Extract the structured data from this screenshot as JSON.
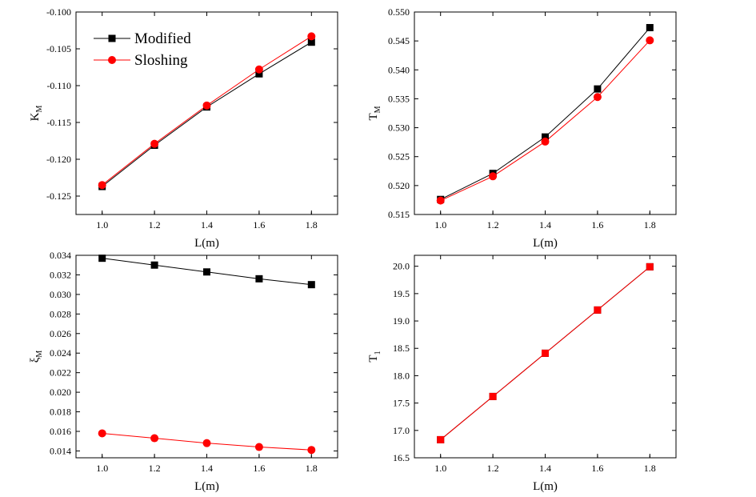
{
  "chart_data": [
    {
      "type": "line",
      "x": [
        1.0,
        1.2,
        1.4,
        1.6,
        1.8
      ],
      "xlim": [
        0.9,
        1.9
      ],
      "xticks": [
        "1.0",
        "1.2",
        "1.4",
        "1.6",
        "1.8"
      ],
      "xlabel": "L(m)",
      "ylabel_main": "K",
      "ylabel_sub": "M",
      "ylim": [
        -0.1275,
        -0.1
      ],
      "yticks": [
        "-0.125",
        "-0.120",
        "-0.115",
        "-0.110",
        "-0.105",
        "-0.100"
      ],
      "ytick_values": [
        -0.125,
        -0.12,
        -0.115,
        -0.11,
        -0.105,
        -0.1
      ],
      "legend": {
        "placement": "top-left",
        "entries": [
          "Modified",
          "Sloshing"
        ]
      },
      "series": [
        {
          "name": "Modified",
          "marker": "square",
          "color": "#000000",
          "values": [
            -0.1237,
            -0.1181,
            -0.1129,
            -0.1084,
            -0.1041
          ]
        },
        {
          "name": "Sloshing",
          "marker": "circle",
          "color": "#ff0000",
          "values": [
            -0.1235,
            -0.1179,
            -0.1127,
            -0.1078,
            -0.1033
          ]
        }
      ]
    },
    {
      "type": "line",
      "x": [
        1.0,
        1.2,
        1.4,
        1.6,
        1.8
      ],
      "xlim": [
        0.9,
        1.9
      ],
      "xticks": [
        "1.0",
        "1.2",
        "1.4",
        "1.6",
        "1.8"
      ],
      "xlabel": "L(m)",
      "ylabel_main": "T",
      "ylabel_sub": "M",
      "ylim": [
        0.515,
        0.55
      ],
      "yticks": [
        "0.515",
        "0.520",
        "0.525",
        "0.530",
        "0.535",
        "0.540",
        "0.545",
        "0.550"
      ],
      "ytick_values": [
        0.515,
        0.52,
        0.525,
        0.53,
        0.535,
        0.54,
        0.545,
        0.55
      ],
      "series": [
        {
          "name": "Modified",
          "marker": "square",
          "color": "#000000",
          "values": [
            0.5176,
            0.5221,
            0.5284,
            0.5367,
            0.5473
          ]
        },
        {
          "name": "Sloshing",
          "marker": "circle",
          "color": "#ff0000",
          "values": [
            0.5174,
            0.5216,
            0.5276,
            0.5353,
            0.5451
          ]
        }
      ]
    },
    {
      "type": "line",
      "x": [
        1.0,
        1.2,
        1.4,
        1.6,
        1.8
      ],
      "xlim": [
        0.9,
        1.9
      ],
      "xticks": [
        "1.0",
        "1.2",
        "1.4",
        "1.6",
        "1.8"
      ],
      "xlabel": "L(m)",
      "ylabel_main": "ξ",
      "ylabel_sub": "M",
      "ylim": [
        0.0133,
        0.034
      ],
      "yticks": [
        "0.014",
        "0.016",
        "0.018",
        "0.020",
        "0.022",
        "0.024",
        "0.026",
        "0.028",
        "0.030",
        "0.032",
        "0.034"
      ],
      "ytick_values": [
        0.014,
        0.016,
        0.018,
        0.02,
        0.022,
        0.024,
        0.026,
        0.028,
        0.03,
        0.032,
        0.034
      ],
      "series": [
        {
          "name": "Modified",
          "marker": "square",
          "color": "#000000",
          "values": [
            0.0337,
            0.033,
            0.0323,
            0.0316,
            0.031
          ]
        },
        {
          "name": "Sloshing",
          "marker": "circle",
          "color": "#ff0000",
          "values": [
            0.0158,
            0.0153,
            0.0148,
            0.0144,
            0.0141
          ]
        }
      ]
    },
    {
      "type": "line",
      "x": [
        1.0,
        1.2,
        1.4,
        1.6,
        1.8
      ],
      "xlim": [
        0.9,
        1.9
      ],
      "xticks": [
        "1.0",
        "1.2",
        "1.4",
        "1.6",
        "1.8"
      ],
      "xlabel": "L(m)",
      "ylabel_main": "T",
      "ylabel_sub": "1",
      "ylim": [
        16.5,
        20.2
      ],
      "yticks": [
        "16.5",
        "17.0",
        "17.5",
        "18.0",
        "18.5",
        "19.0",
        "19.5",
        "20.0"
      ],
      "ytick_values": [
        16.5,
        17.0,
        17.5,
        18.0,
        18.5,
        19.0,
        19.5,
        20.0
      ],
      "series": [
        {
          "name": "Modified",
          "marker": "square",
          "color": "#000000",
          "values": [
            16.83,
            17.62,
            18.41,
            19.2,
            19.99
          ]
        },
        {
          "name": "Sloshing",
          "marker": "square",
          "color": "#ff0000",
          "values": [
            16.83,
            17.62,
            18.41,
            19.2,
            19.99
          ]
        }
      ]
    }
  ]
}
